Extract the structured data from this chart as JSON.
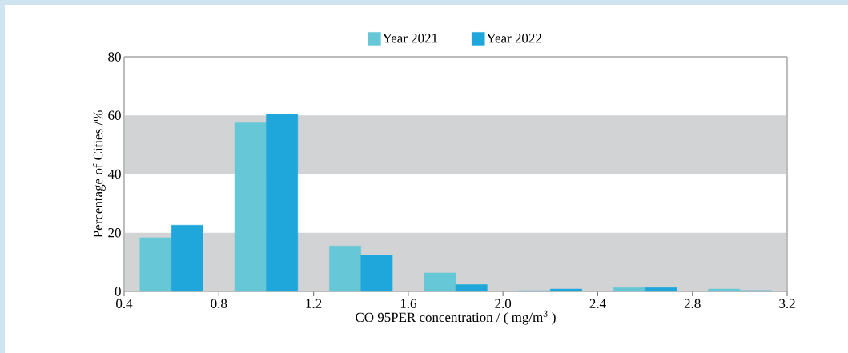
{
  "chart_data": {
    "type": "bar",
    "xlabel": "CO 95PER concentration / ( mg/m$^{3}$ )",
    "ylabel": "Percentage of Cities /%",
    "x": [
      0.6,
      1.0,
      1.4,
      1.8,
      2.2,
      2.6,
      3.0
    ],
    "series": [
      {
        "name": "Year 2021",
        "color": "#66c8d6",
        "values": [
          18.3,
          57.5,
          15.5,
          6.3,
          0.3,
          1.3,
          0.8
        ]
      },
      {
        "name": "Year 2022",
        "color": "#1fa7dc",
        "values": [
          22.6,
          60.4,
          12.3,
          2.3,
          0.8,
          1.3,
          0.3
        ]
      }
    ],
    "xlim": [
      0.4,
      3.2
    ],
    "ylim": [
      0,
      80
    ],
    "xticks": [
      0.4,
      0.8,
      1.2,
      1.6,
      {
        "value": 2,
        "label": "2.0"
      },
      2.4,
      2.8,
      3.2
    ],
    "yticks": [
      0,
      20,
      40,
      60,
      80
    ],
    "bands": [
      {
        "axis": "y",
        "from": 0,
        "to": 20,
        "color": "#d1d3d4"
      },
      {
        "axis": "y",
        "from": 40,
        "to": 60,
        "color": "#d1d3d4"
      }
    ],
    "legend": "top"
  }
}
